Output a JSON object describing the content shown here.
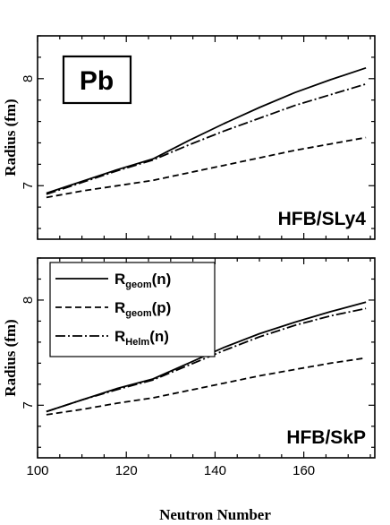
{
  "chart_data": [
    {
      "type": "line",
      "title": "",
      "element_label": "Pb",
      "panel_label": "HFB/SLy4",
      "xlabel": "",
      "ylabel": "Radius (fm)",
      "xlim": [
        100,
        176
      ],
      "ylim": [
        6.5,
        8.4
      ],
      "xticks": [],
      "yticks": [
        7,
        8
      ],
      "yticklabels": [
        "7",
        "8"
      ],
      "grid": false,
      "series": [
        {
          "style": "solid",
          "x": [
            102,
            110,
            118,
            126,
            134,
            142,
            150,
            158,
            166,
            174
          ],
          "y": [
            6.93,
            7.04,
            7.15,
            7.25,
            7.42,
            7.58,
            7.73,
            7.87,
            7.99,
            8.1
          ]
        },
        {
          "style": "dash-dot",
          "x": [
            102,
            110,
            118,
            126,
            134,
            142,
            150,
            158,
            166,
            174
          ],
          "y": [
            6.92,
            7.03,
            7.14,
            7.24,
            7.38,
            7.51,
            7.63,
            7.75,
            7.85,
            7.95
          ]
        },
        {
          "style": "dashed",
          "x": [
            102,
            110,
            118,
            126,
            134,
            142,
            150,
            158,
            166,
            174
          ],
          "y": [
            6.89,
            6.95,
            7.0,
            7.05,
            7.12,
            7.19,
            7.26,
            7.33,
            7.39,
            7.45
          ]
        }
      ]
    },
    {
      "type": "line",
      "title": "",
      "panel_label": "HFB/SkP",
      "xlabel": "Neutron Number",
      "ylabel": "Radius (fm)",
      "xlim": [
        100,
        176
      ],
      "ylim": [
        6.5,
        8.4
      ],
      "xticks": [
        100,
        120,
        140,
        160
      ],
      "xticklabels": [
        "100",
        "120",
        "140",
        "160"
      ],
      "yticks": [
        7,
        8
      ],
      "yticklabels": [
        "7",
        "8"
      ],
      "grid": false,
      "legend": {
        "position": "top-left",
        "entries": [
          {
            "base": "R",
            "sub": "geom",
            "tail": "(n)",
            "style": "solid"
          },
          {
            "base": "R",
            "sub": "geom",
            "tail": "(p)",
            "style": "dashed"
          },
          {
            "base": "R",
            "sub": "Helm",
            "tail": "(n)",
            "style": "dash-dot"
          }
        ]
      },
      "series": [
        {
          "name": "Rgeom(n)",
          "style": "solid",
          "x": [
            102,
            110,
            118,
            126,
            134,
            142,
            150,
            158,
            166,
            174
          ],
          "y": [
            6.94,
            7.05,
            7.16,
            7.25,
            7.4,
            7.55,
            7.68,
            7.79,
            7.89,
            7.98
          ]
        },
        {
          "name": "RHelm(n)",
          "style": "dash-dot",
          "x": [
            102,
            110,
            118,
            126,
            134,
            142,
            150,
            158,
            166,
            174
          ],
          "y": [
            6.94,
            7.05,
            7.15,
            7.24,
            7.38,
            7.52,
            7.65,
            7.76,
            7.85,
            7.92
          ]
        },
        {
          "name": "Rgeom(p)",
          "style": "dashed",
          "x": [
            102,
            110,
            118,
            126,
            134,
            142,
            150,
            158,
            166,
            174
          ],
          "y": [
            6.91,
            6.96,
            7.02,
            7.07,
            7.14,
            7.21,
            7.28,
            7.34,
            7.4,
            7.45
          ]
        }
      ]
    }
  ]
}
